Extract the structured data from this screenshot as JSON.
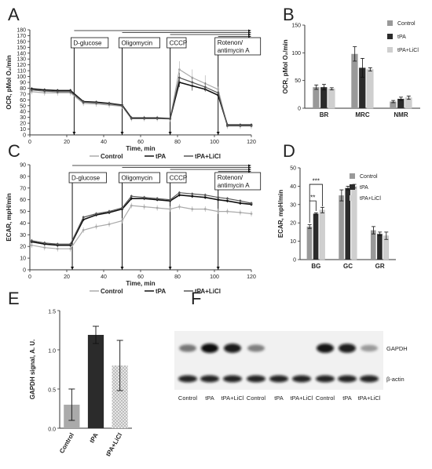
{
  "panels": {
    "A": {
      "letter": "A",
      "chart_data": {
        "type": "line",
        "xlabel": "Time, min",
        "ylabel": "OCR, pMol O₂/min",
        "xlim": [
          0,
          120
        ],
        "ylim": [
          0,
          180
        ],
        "xticks": [
          "0",
          "20",
          "40",
          "60",
          "80",
          "100",
          "120"
        ],
        "yticks": [
          "0",
          "10",
          "20",
          "30",
          "40",
          "50",
          "60",
          "70",
          "80",
          "90",
          "100",
          "110",
          "120",
          "130",
          "140",
          "150",
          "160",
          "170",
          "180"
        ],
        "x": [
          1,
          8,
          15,
          22,
          29,
          36,
          43,
          50,
          55,
          62,
          69,
          76,
          81,
          88,
          95,
          102,
          107,
          114,
          120
        ],
        "series": [
          {
            "name": "Control",
            "color": "#aaaaaa",
            "values": [
              74,
              72,
              72,
              72,
              54,
              53,
              51,
              49,
              28,
              28,
              28,
              27,
              112,
              98,
              88,
              78,
              15,
              15,
              15
            ]
          },
          {
            "name": "tPA",
            "color": "#111111",
            "values": [
              79,
              77,
              76,
              76,
              57,
              56,
              54,
              51,
              29,
              29,
              29,
              28,
              90,
              84,
              78,
              68,
              17,
              17,
              17
            ]
          },
          {
            "name": "tPA+LiCl",
            "color": "#555555",
            "values": [
              77,
              75,
              74,
              74,
              56,
              55,
              53,
              50,
              28,
              28,
              28,
              28,
              98,
              90,
              82,
              72,
              16,
              16,
              16
            ]
          }
        ],
        "injections": [
          "D-glucose",
          "Oligomycin",
          "CCCP",
          "Rotenon/ antimycin A"
        ],
        "injection_times": [
          24,
          50,
          76,
          102
        ]
      }
    },
    "B": {
      "letter": "B",
      "chart_data": {
        "type": "bar",
        "ylabel": "OCR, pMol O₂/min",
        "ylim": [
          0,
          150
        ],
        "yticks": [
          "0",
          "50",
          "100",
          "150"
        ],
        "categories": [
          "BR",
          "MRC",
          "NMR"
        ],
        "series": [
          {
            "name": "Control",
            "color": "#999999",
            "values": [
              38,
              98,
              12
            ],
            "errors": [
              4,
              13,
              2
            ]
          },
          {
            "name": "tPA",
            "color": "#2b2b2b",
            "values": [
              38,
              73,
              17
            ],
            "errors": [
              5,
              17,
              3
            ]
          },
          {
            "name": "tPA+LiCl",
            "color": "#cfcfcf",
            "values": [
              35,
              70,
              19
            ],
            "errors": [
              2,
              3,
              3
            ]
          }
        ],
        "legend": "top-right"
      }
    },
    "C": {
      "letter": "C",
      "chart_data": {
        "type": "line",
        "xlabel": "Time, min",
        "ylabel": "ECAR, mpH/min",
        "xlim": [
          0,
          120
        ],
        "ylim": [
          0,
          90
        ],
        "xticks": [
          "0",
          "20",
          "40",
          "60",
          "80",
          "100",
          "120"
        ],
        "yticks": [
          "0",
          "10",
          "20",
          "30",
          "40",
          "50",
          "60",
          "70",
          "80",
          "90"
        ],
        "x": [
          1,
          8,
          15,
          22,
          29,
          36,
          43,
          50,
          55,
          62,
          69,
          76,
          81,
          88,
          95,
          102,
          107,
          114,
          120
        ],
        "series": [
          {
            "name": "Control",
            "color": "#aaaaaa",
            "values": [
              21,
              19,
              18,
              18,
              34,
              37,
              39,
              42,
              55,
              54,
              53,
              52,
              54,
              52,
              52,
              50,
              50,
              49,
              48
            ]
          },
          {
            "name": "tPA",
            "color": "#111111",
            "values": [
              24,
              22,
              21,
              21,
              43,
              47,
              49,
              52,
              61,
              61,
              60,
              59,
              64,
              63,
              62,
              60,
              59,
              57,
              56
            ]
          },
          {
            "name": "tPA+LiCl",
            "color": "#555555",
            "values": [
              25,
              23,
              22,
              22,
              45,
              48,
              50,
              53,
              63,
              62,
              61,
              60,
              66,
              65,
              64,
              62,
              61,
              59,
              57
            ]
          }
        ],
        "injections": [
          "D-glucose",
          "Oligomycin",
          "CCCP",
          "Rotenon/ antimycin A"
        ],
        "injection_times": [
          23,
          50,
          76,
          102
        ]
      }
    },
    "D": {
      "letter": "D",
      "chart_data": {
        "type": "bar",
        "ylabel": "ECAR, mpH/min",
        "ylim": [
          0,
          50
        ],
        "yticks": [
          "0",
          "10",
          "20",
          "30",
          "40",
          "50"
        ],
        "categories": [
          "BG",
          "GC",
          "GR"
        ],
        "series": [
          {
            "name": "Control",
            "color": "#999999",
            "values": [
              18,
              35,
              16
            ],
            "errors": [
              1,
              3,
              2
            ]
          },
          {
            "name": "tPA",
            "color": "#2b2b2b",
            "values": [
              25,
              39,
              14
            ],
            "errors": [
              0.5,
              1,
              1
            ]
          },
          {
            "name": "tPA+LiCl",
            "color": "#cfcfcf",
            "values": [
              27,
              40,
              13
            ],
            "errors": [
              1.5,
              1,
              2
            ]
          }
        ],
        "significance": [
          "**",
          "***"
        ],
        "legend": "top-right"
      }
    },
    "E": {
      "letter": "E",
      "chart_data": {
        "type": "bar",
        "ylabel": "GAPDH signal, A. U.",
        "ylim": [
          0,
          1.5
        ],
        "yticks": [
          "0.0",
          "0.5",
          "1.0",
          "1.5"
        ],
        "categories": [
          "Control",
          "tPA",
          "tPA+LiCl"
        ],
        "values": [
          0.3,
          1.19,
          0.8
        ],
        "errors": [
          0.2,
          0.11,
          0.32
        ],
        "colors": [
          "#aaaaaa",
          "#2b2b2b",
          "#d4d4d4"
        ]
      }
    },
    "F": {
      "letter": "F",
      "band_labels": [
        "GAPDH",
        "β-actin"
      ],
      "lane_labels": [
        "Control",
        "tPA",
        "tPA+LiCl",
        "Control",
        "tPA",
        "tPA+LiCl",
        "Control",
        "tPA",
        "tPA+LiCl"
      ],
      "gapdh_intensity": [
        0.35,
        1.0,
        0.92,
        0.3,
        0.0,
        0.0,
        0.95,
        0.9,
        0.15
      ],
      "actin_intensity": [
        1.0,
        1.0,
        1.0,
        1.0,
        1.0,
        1.0,
        1.0,
        1.0,
        1.0
      ]
    }
  }
}
